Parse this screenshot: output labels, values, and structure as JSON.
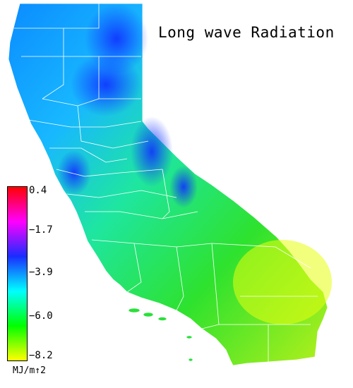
{
  "title": "Long wave Radiation",
  "legend": {
    "ticks": [
      "0.4",
      "−1.7",
      "−3.9",
      "−6.0",
      "−8.2"
    ],
    "units": "MJ/m↑2",
    "colors": [
      "#ff0000",
      "#ff00ff",
      "#1a2cff",
      "#00ffff",
      "#00ff00",
      "#ffff00"
    ]
  }
}
